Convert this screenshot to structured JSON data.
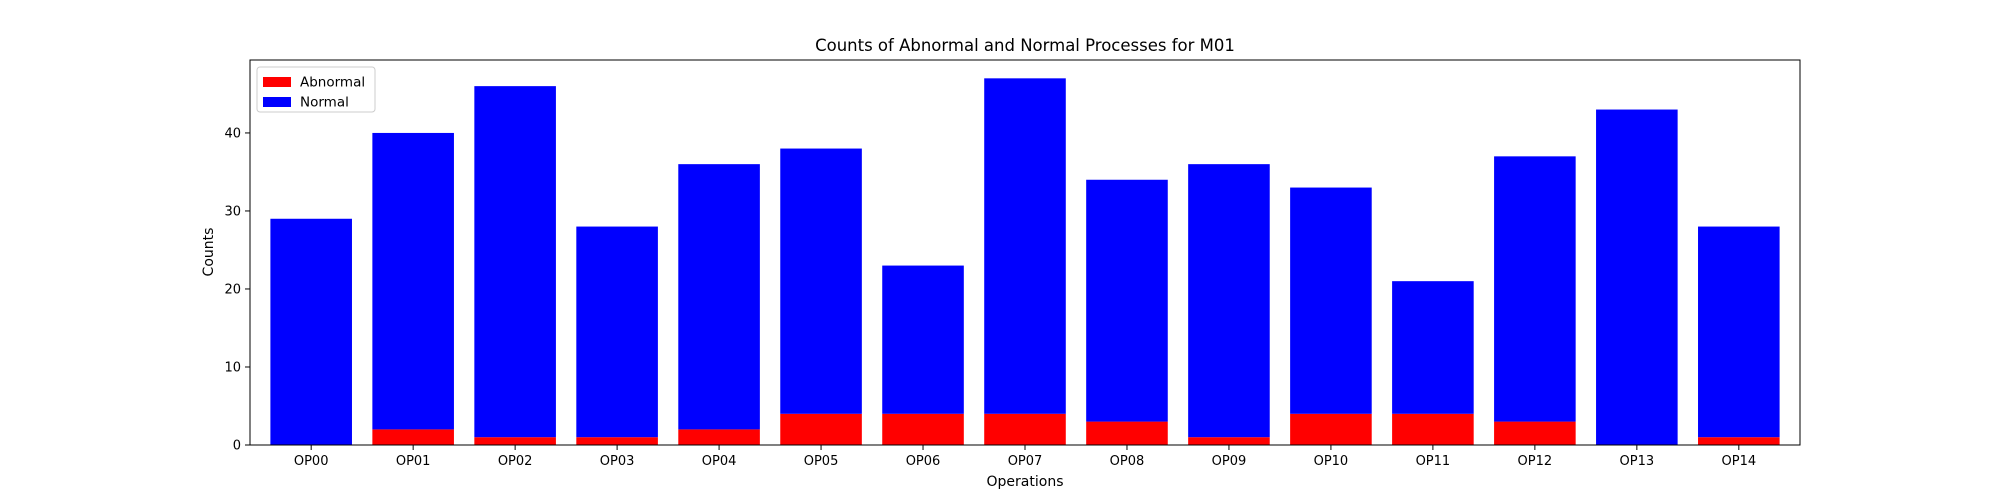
{
  "chart_data": {
    "type": "bar",
    "stacked": true,
    "title": "Counts of Abnormal and Normal Processes for M01",
    "xlabel": "Operations",
    "ylabel": "Counts",
    "ylim": [
      0,
      49.35
    ],
    "yticks": [
      0,
      10,
      20,
      30,
      40
    ],
    "grid": false,
    "legend_position": "top-left",
    "categories": [
      "OP00",
      "OP01",
      "OP02",
      "OP03",
      "OP04",
      "OP05",
      "OP06",
      "OP07",
      "OP08",
      "OP09",
      "OP10",
      "OP11",
      "OP12",
      "OP13",
      "OP14"
    ],
    "series": [
      {
        "name": "Abnormal",
        "color": "#ff0000",
        "values": [
          0,
          2,
          1,
          1,
          2,
          4,
          4,
          4,
          3,
          1,
          4,
          4,
          3,
          0,
          1
        ]
      },
      {
        "name": "Normal",
        "color": "#0000ff",
        "values": [
          29,
          38,
          45,
          27,
          34,
          34,
          19,
          43,
          31,
          35,
          29,
          17,
          34,
          43,
          27
        ]
      }
    ]
  }
}
